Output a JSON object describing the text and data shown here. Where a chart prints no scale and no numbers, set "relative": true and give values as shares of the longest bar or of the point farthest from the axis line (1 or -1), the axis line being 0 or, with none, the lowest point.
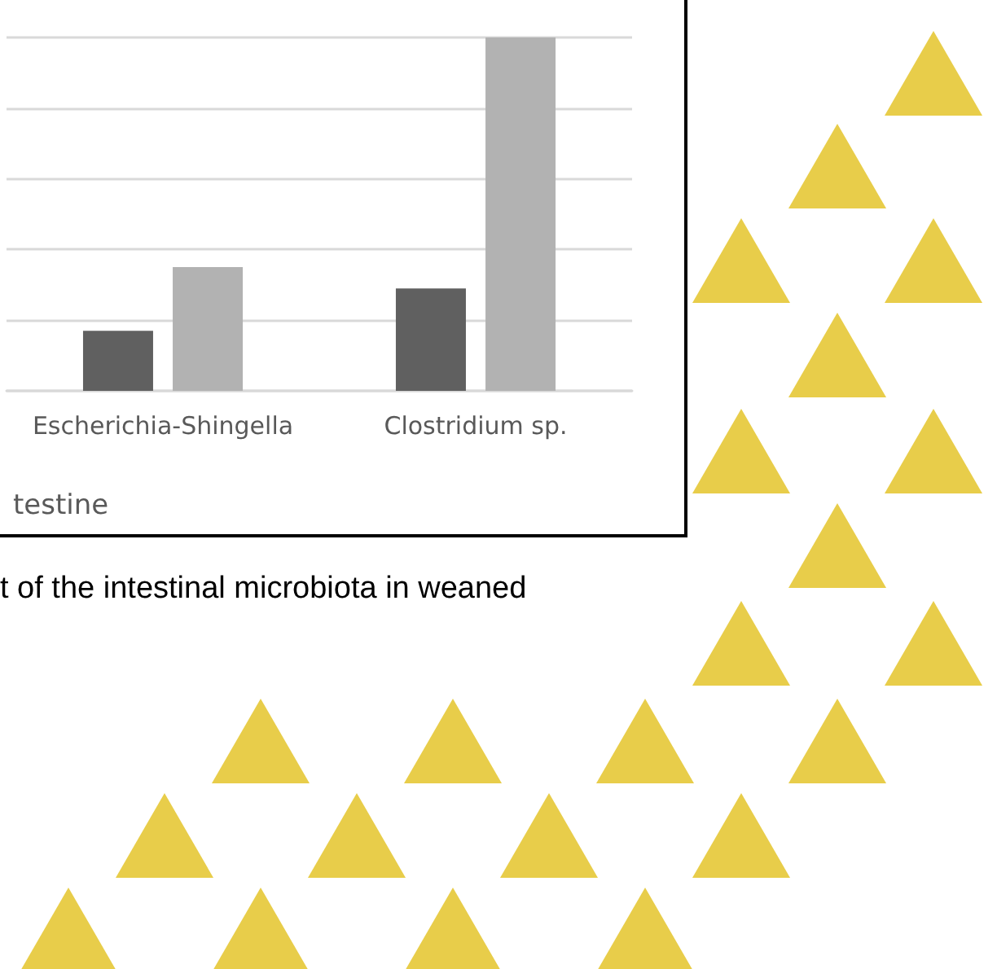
{
  "chart_data": {
    "type": "bar",
    "relative": true,
    "categories": [
      "Escherichia-Shingella",
      "Clostridium sp."
    ],
    "series": [
      {
        "color": "#606060",
        "values": [
          0.17,
          0.29
        ]
      },
      {
        "color": "#b2b2b2",
        "values": [
          0.35,
          1
        ]
      }
    ],
    "xlabel": "testine",
    "grid": "y",
    "annotations": [
      "t of the intestinal microbiota in weaned"
    ]
  }
}
